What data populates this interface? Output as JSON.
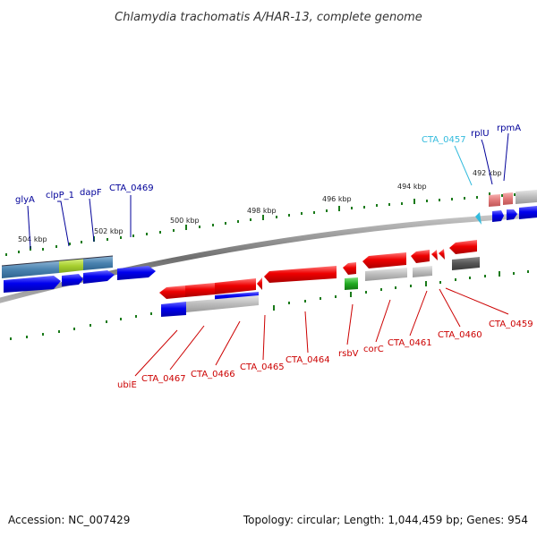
{
  "title": "Chlamydia trachomatis A/HAR-13, complete genome",
  "footer": {
    "accession": "Accession: NC_007429",
    "topology": "Topology: circular; Length: 1,044,459 bp; Genes: 954"
  },
  "ruler": [
    "504 kbp",
    "502 kbp",
    "500 kbp",
    "498 kbp",
    "496 kbp",
    "494 kbp",
    "492 kbp"
  ],
  "genes_top": [
    "glyA",
    "clpP_1",
    "dapF",
    "CTA_0469",
    "CTA_0457",
    "rplU",
    "rpmA"
  ],
  "genes_bottom": [
    "ubiE",
    "CTA_0467",
    "CTA_0466",
    "CTA_0465",
    "CTA_0464",
    "rsbV",
    "corC",
    "CTA_0461",
    "CTA_0460",
    "CTA_0459"
  ],
  "colors": {
    "forward": "#0000ee",
    "reverse": "#ee0000",
    "tick": "#1a7a1a",
    "label_forward": "#000099",
    "label_reverse": "#cc0000",
    "label_trna": "#33bbdd"
  }
}
